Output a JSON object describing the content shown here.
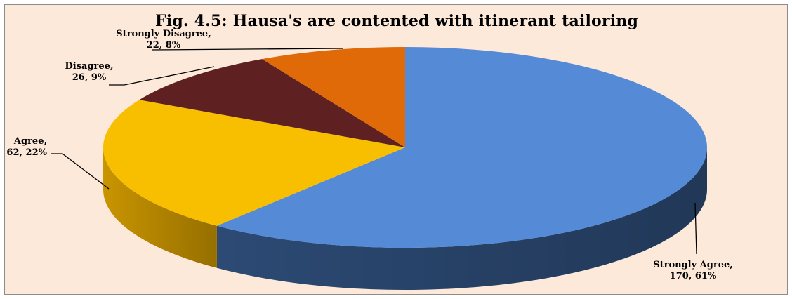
{
  "chart_data": {
    "type": "pie",
    "title": "Fig. 4.5: Hausa's are contented with itinerant tailoring",
    "slices": [
      {
        "label": "Strongly Agree",
        "value": 170,
        "percent": "61%",
        "color": "#548ad6",
        "side_color": "#2c4a74"
      },
      {
        "label": "Agree",
        "value": 62,
        "percent": "22%",
        "color": "#f8be00",
        "side_color": "#c89400"
      },
      {
        "label": "Disagree",
        "value": 26,
        "percent": "9%",
        "color": "#5e2020",
        "side_color": "#3e1212"
      },
      {
        "label": "Strongly Disagree",
        "value": 22,
        "percent": "8%",
        "color": "#e06a08",
        "side_color": "#a84c04"
      }
    ],
    "data_labels": [
      {
        "line1": "Strongly Agree,",
        "line2": "170, 61%"
      },
      {
        "line1": "Agree,",
        "line2": "62, 22%"
      },
      {
        "line1": "Disagree,",
        "line2": "26, 9%"
      },
      {
        "line1": "Strongly Disagree,",
        "line2": "22, 8%"
      }
    ],
    "legend": "none",
    "style": "3d-pie"
  }
}
